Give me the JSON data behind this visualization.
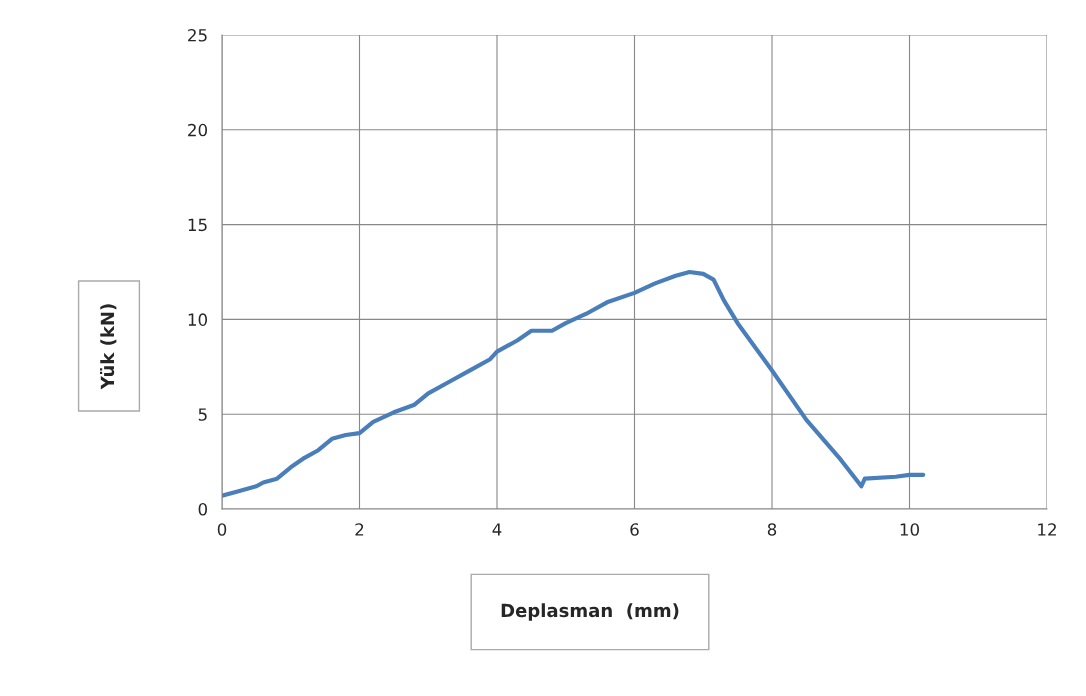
{
  "chart_data": {
    "type": "line",
    "xlabel": "Deplasman  (mm)",
    "ylabel": "Yük (kN)",
    "xlim": [
      0,
      12
    ],
    "xticks": [
      0,
      2,
      4,
      6,
      8,
      10,
      12
    ],
    "ylim": [
      0,
      25
    ],
    "yticks": [
      0,
      5,
      10,
      15,
      20,
      25
    ],
    "grid": true,
    "line_style": "solid",
    "marker": "none",
    "series": [
      {
        "color": "#4a7ebb",
        "x": [
          0,
          0.2,
          0.5,
          0.6,
          0.8,
          1.0,
          1.2,
          1.4,
          1.6,
          1.8,
          2.0,
          2.2,
          2.5,
          2.8,
          3.0,
          3.3,
          3.6,
          3.9,
          4.0,
          4.3,
          4.5,
          4.8,
          5.0,
          5.3,
          5.6,
          6.0,
          6.3,
          6.6,
          6.8,
          7.0,
          7.15,
          7.3,
          7.5,
          8.0,
          8.5,
          9.0,
          9.3,
          9.35,
          9.8,
          10.0,
          10.2
        ],
        "values": [
          0.7,
          0.9,
          1.2,
          1.4,
          1.6,
          2.2,
          2.7,
          3.1,
          3.7,
          3.9,
          4.0,
          4.6,
          5.1,
          5.5,
          6.1,
          6.7,
          7.3,
          7.9,
          8.3,
          8.9,
          9.4,
          9.4,
          9.8,
          10.3,
          10.9,
          11.4,
          11.9,
          12.3,
          12.5,
          12.4,
          12.1,
          11.0,
          9.8,
          7.3,
          4.7,
          2.6,
          1.2,
          1.6,
          1.7,
          1.8,
          1.8
        ]
      }
    ]
  }
}
